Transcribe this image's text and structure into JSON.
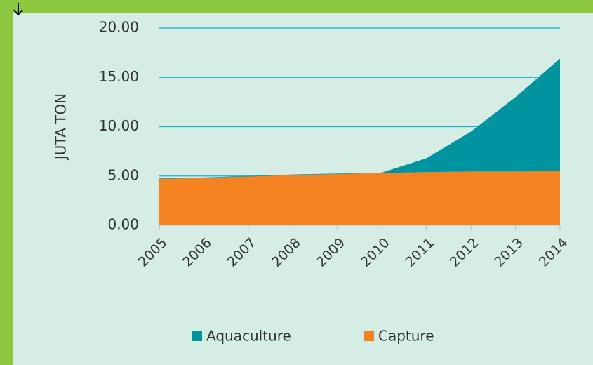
{
  "chart_data": {
    "type": "stacked-area",
    "categories": [
      "2005",
      "2006",
      "2007",
      "2008",
      "2009",
      "2010",
      "2011",
      "2012",
      "2013",
      "2014"
    ],
    "series": [
      {
        "name": "Aquaculture",
        "color": "#0093a0",
        "values": [
          0.05,
          0.05,
          0.05,
          0.05,
          0.05,
          0.05,
          1.4,
          4.05,
          7.55,
          11.4
        ]
      },
      {
        "name": "Capture",
        "color": "#f58220",
        "values": [
          4.7,
          4.8,
          4.95,
          5.1,
          5.2,
          5.3,
          5.4,
          5.45,
          5.45,
          5.5
        ]
      }
    ],
    "ylabel": "JUTA TON",
    "ylim": [
      0,
      20
    ],
    "yticks": [
      {
        "value": 0,
        "label": "0.00"
      },
      {
        "value": 5,
        "label": "5.00"
      },
      {
        "value": 10,
        "label": "10.00"
      },
      {
        "value": 15,
        "label": "15.00"
      },
      {
        "value": 20,
        "label": "20.00"
      }
    ],
    "grid": true,
    "legend": "bottom"
  }
}
